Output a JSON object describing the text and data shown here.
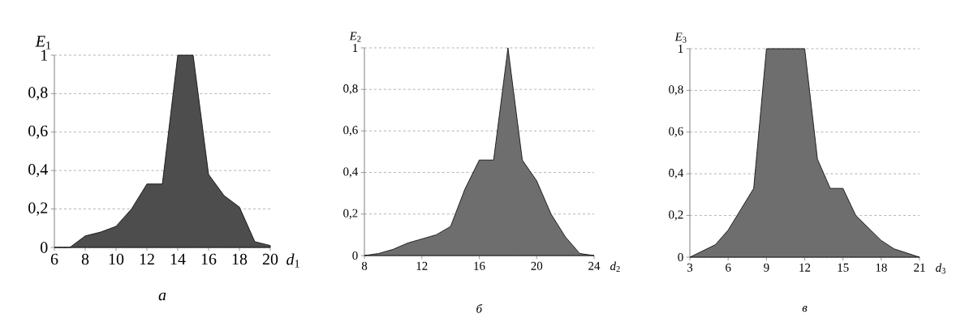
{
  "chart_data": [
    {
      "type": "area",
      "xlabel": "*d*$_{1}$",
      "ylabel": "*E*$_{1}$",
      "annotations": [
        "*а*"
      ],
      "x": [
        6,
        7,
        8,
        9,
        10,
        11,
        12,
        13,
        14,
        15,
        16,
        17,
        18,
        19,
        20
      ],
      "series": [
        {
          "color": "#4d4d4d",
          "values": [
            0,
            0,
            0.06,
            0.08,
            0.11,
            0.2,
            0.33,
            0.33,
            1,
            1,
            0.38,
            0.27,
            0.21,
            0.03,
            0.01
          ]
        }
      ],
      "xlim": [
        6,
        20
      ],
      "xticks": [
        6,
        8,
        10,
        12,
        14,
        16,
        18,
        20
      ],
      "ylim": [
        0,
        1
      ],
      "yticks": [
        0,
        {
          "value": 0.2,
          "label": "0,2"
        },
        {
          "value": 0.4,
          "label": "0,4"
        },
        {
          "value": 0.6,
          "label": "0,6"
        },
        {
          "value": 0.8,
          "label": "0,8"
        },
        1
      ],
      "grid": "y",
      "line_style": "solid"
    },
    {
      "type": "area",
      "xlabel": "*d*$_{2}$",
      "ylabel": "*E*$_{2}$",
      "annotations": [
        "*б*"
      ],
      "x": [
        8,
        9,
        10,
        11,
        12,
        13,
        14,
        15,
        16,
        17,
        18,
        19,
        20,
        21,
        22,
        23,
        24
      ],
      "series": [
        {
          "color": "#6e6e6e",
          "values": [
            0,
            0.01,
            0.03,
            0.06,
            0.08,
            0.1,
            0.14,
            0.32,
            0.46,
            0.46,
            1,
            0.46,
            0.36,
            0.2,
            0.09,
            0.01,
            0
          ]
        }
      ],
      "xlim": [
        8,
        24
      ],
      "xticks": [
        8,
        12,
        16,
        20,
        24
      ],
      "ylim": [
        0,
        1
      ],
      "yticks": [
        0,
        {
          "value": 0.2,
          "label": "0,2"
        },
        {
          "value": 0.4,
          "label": "0,4"
        },
        {
          "value": 0.6,
          "label": "0,6"
        },
        {
          "value": 0.8,
          "label": "0,8"
        },
        1
      ],
      "grid": "y",
      "line_style": "solid"
    },
    {
      "type": "area",
      "xlabel": "*d*$_{3}$",
      "ylabel": "*E*$_{3}$",
      "annotations": [
        "*в*"
      ],
      "x": [
        3,
        4,
        5,
        6,
        7,
        8,
        9,
        10,
        11,
        12,
        13,
        14,
        15,
        16,
        17,
        18,
        19,
        20,
        21
      ],
      "series": [
        {
          "color": "#6e6e6e",
          "values": [
            0,
            0.03,
            0.06,
            0.13,
            0.23,
            0.33,
            1,
            1,
            1,
            1,
            0.47,
            0.33,
            0.33,
            0.2,
            0.14,
            0.08,
            0.04,
            0.02,
            0
          ]
        }
      ],
      "xlim": [
        3,
        21
      ],
      "xticks": [
        3,
        6,
        9,
        12,
        15,
        18,
        21
      ],
      "ylim": [
        0,
        1
      ],
      "yticks": [
        0,
        {
          "value": 0.2,
          "label": "0,2"
        },
        {
          "value": 0.4,
          "label": "0,4"
        },
        {
          "value": 0.6,
          "label": "0,6"
        },
        {
          "value": 0.8,
          "label": "0,8"
        },
        1
      ],
      "grid": "y",
      "line_style": "solid"
    }
  ]
}
